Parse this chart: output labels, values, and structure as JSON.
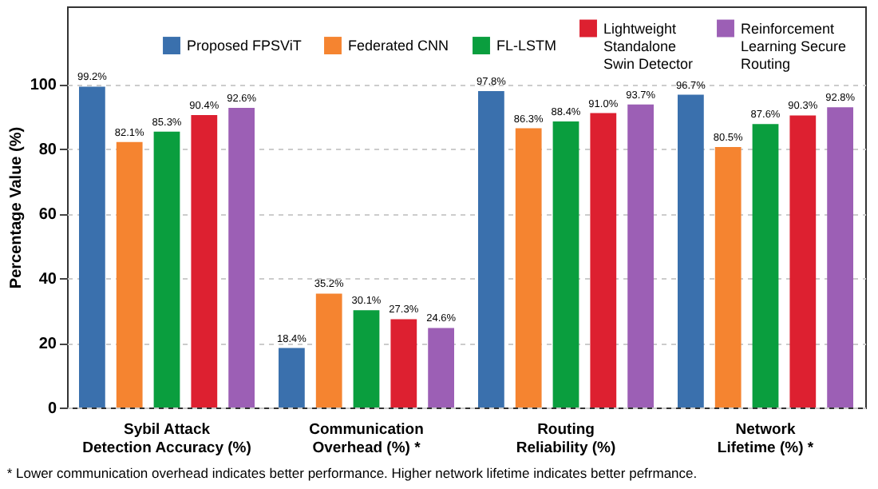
{
  "chart_data": {
    "type": "bar",
    "ylabel": "Percentage Value (%)",
    "categories": [
      "Sybil Attack\nDetection Accuracy (%)",
      "Communication\nOverhead (%) *",
      "Routing\nReliability (%)",
      "Network\nLifetime (%) *"
    ],
    "series": [
      {
        "name": "Proposed FPSViT",
        "color": "#3a70ad",
        "values": [
          99.2,
          18.4,
          97.8,
          96.7
        ],
        "value_labels": [
          "99.2%",
          "18.4%",
          "97.8%",
          "96.7%"
        ]
      },
      {
        "name": "Federated CNN",
        "color": "#f58430",
        "values": [
          82.1,
          35.2,
          86.3,
          80.5
        ],
        "value_labels": [
          "82.1%",
          "35.2%",
          "86.3%",
          "80.5%"
        ]
      },
      {
        "name": "FL-LSTM",
        "color": "#0a9e3e",
        "values": [
          85.3,
          30.1,
          88.4,
          87.6
        ],
        "value_labels": [
          "85.3%",
          "30.1%",
          "88.4%",
          "87.6%"
        ]
      },
      {
        "name": "Lightweight\nStandalone\nSwin Detector",
        "color": "#dd2030",
        "values": [
          90.4,
          27.3,
          91.0,
          90.3
        ],
        "value_labels": [
          "90.4%",
          "27.3%",
          "91.0%",
          "90.3%"
        ]
      },
      {
        "name": "Reinforcement\nLearning Secure\nRouting",
        "color": "#9c5fb5",
        "values": [
          92.6,
          24.6,
          93.7,
          92.8
        ],
        "value_labels": [
          "92.6%",
          "24.6%",
          "93.7%",
          "92.8%"
        ]
      }
    ],
    "ylim": [
      0,
      124
    ],
    "yticks": [
      0,
      20,
      40,
      60,
      80,
      100
    ],
    "grid": "y",
    "legend": "top",
    "annotations": [
      "* Lower communication overhead indicates better performance. Higher network lifetime indicates better pefrmance."
    ]
  }
}
